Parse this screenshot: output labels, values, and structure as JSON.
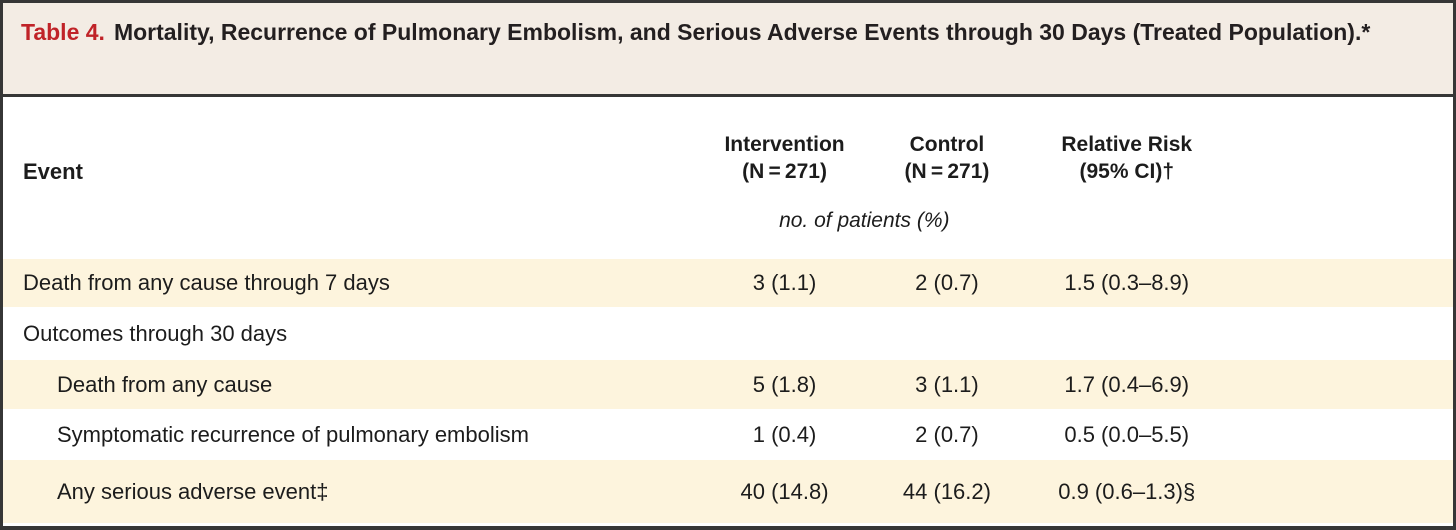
{
  "title": {
    "label": "Table 4.",
    "text": "Mortality, Recurrence of Pulmonary Embolism, and Serious Adverse Events through 30 Days (Treated Population).*"
  },
  "table": {
    "header": {
      "event": "Event",
      "intervention_line1": "Intervention",
      "intervention_line2": "(N = 271)",
      "control_line1": "Control",
      "control_line2": "(N = 271)",
      "relative_risk_line1": "Relative Risk",
      "relative_risk_line2": "(95% CI)†"
    },
    "subheader": "no. of patients (%)",
    "rows": [
      {
        "label": "Death from any cause through 7 days",
        "intervention": "3 (1.1)",
        "control": "2 (0.7)",
        "relative_risk": "1.5 (0.3–8.9)"
      },
      {
        "label": "Outcomes through 30 days",
        "intervention": "",
        "control": "",
        "relative_risk": ""
      },
      {
        "label": "Death from any cause",
        "intervention": "5 (1.8)",
        "control": "3 (1.1)",
        "relative_risk": "1.7 (0.4–6.9)"
      },
      {
        "label": "Symptomatic recurrence of pulmonary embolism",
        "intervention": "1 (0.4)",
        "control": "2 (0.7)",
        "relative_risk": "0.5 (0.0–5.5)"
      },
      {
        "label": "Any serious adverse event‡",
        "intervention": "40 (14.8)",
        "control": "44 (16.2)",
        "relative_risk": "0.9 (0.6–1.3)§"
      }
    ]
  },
  "colors": {
    "title_background": "#f3ece4",
    "row_stripe": "#fdf4dd",
    "table_label_red": "#c02328",
    "border_dark": "#363636",
    "text": "#1c1c1c"
  }
}
